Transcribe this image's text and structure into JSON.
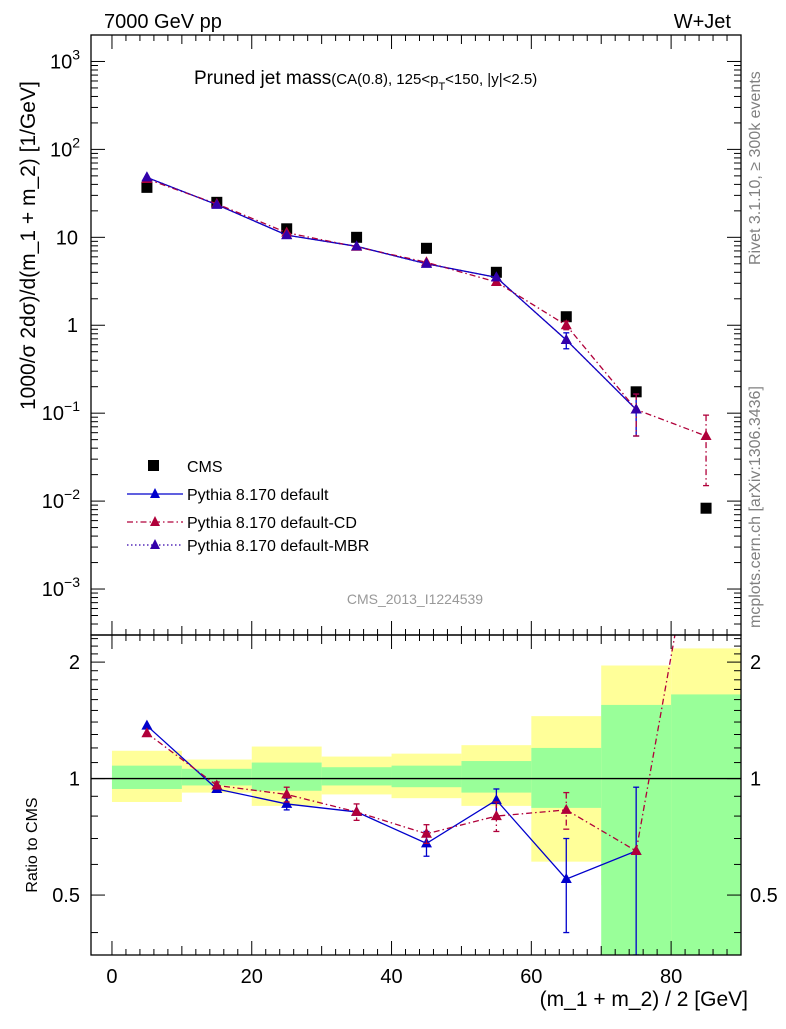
{
  "header": {
    "left": "7000 GeV pp",
    "right": "W+Jet"
  },
  "side_labels": {
    "rivet": "Rivet 3.1.10, ≥ 300k events",
    "mcplots": "mcplots.cern.ch [arXiv:1306.3436]"
  },
  "chart_data": {
    "type": "scatter",
    "title": "Pruned jet mass",
    "title_suffix": "(CA(0.8), 125<p",
    "title_sub": "T",
    "title_end": "<150, |y|<2.5)",
    "reference": "CMS_2013_I1224539",
    "xlabel": "(m_1 + m_2) / 2 [GeV]",
    "ylabel": "1000/σ 2dσ)/d(m_1 + m_2) [1/GeV]",
    "ratio_ylabel": "Ratio to CMS",
    "xlim": [
      -3,
      90
    ],
    "ylim": [
      0.0003,
      2000
    ],
    "yscale": "log",
    "ratio_ylim": [
      0.35,
      2.35
    ],
    "ratio_yscale": "log",
    "x_ticks": [
      "0",
      "20",
      "40",
      "60",
      "80"
    ],
    "main_y_ticks": [
      "10",
      "10",
      "10",
      "1",
      "10",
      "10",
      "10"
    ],
    "main_y_tick_exps": [
      "3",
      "2",
      "",
      "",
      "−1",
      "−2",
      "−3"
    ],
    "ratio_y_ticks": [
      "2",
      "1",
      "0.5"
    ],
    "legend": [
      "CMS",
      "Pythia 8.170 default",
      "Pythia 8.170 default-CD",
      "Pythia 8.170 default-MBR"
    ],
    "series": [
      {
        "name": "CMS",
        "color": "#000000",
        "marker": "square",
        "x": [
          5,
          15,
          25,
          35,
          45,
          55,
          65,
          75,
          85
        ],
        "y": [
          37,
          25,
          12.5,
          10,
          7.5,
          4.0,
          1.25,
          0.175,
          0.0083
        ]
      },
      {
        "name": "Pythia 8.170 default",
        "color": "#0000cc",
        "marker": "triangle",
        "style": "solid",
        "x": [
          5,
          15,
          25,
          35,
          45,
          55,
          65,
          75
        ],
        "y": [
          48,
          23.5,
          10.6,
          7.9,
          5.0,
          3.5,
          0.68,
          0.11
        ],
        "err_lo": [
          0,
          0,
          0,
          0,
          0,
          0,
          0.14,
          0.055
        ],
        "err_hi": [
          0,
          0,
          0,
          0,
          0,
          0,
          0.14,
          0.055
        ]
      },
      {
        "name": "Pythia 8.170 default-CD",
        "color": "#b0003a",
        "marker": "triangle",
        "style": "dashdot",
        "x": [
          5,
          15,
          25,
          35,
          45,
          55,
          65,
          75,
          85
        ],
        "y": [
          46,
          24,
          11.3,
          7.8,
          5.2,
          3.1,
          1.0,
          0.11,
          0.055
        ],
        "err_lo": [
          0,
          0,
          0,
          0,
          0,
          0,
          0.11,
          0.055,
          0.04
        ],
        "err_hi": [
          0,
          0,
          0,
          0,
          0,
          0,
          0.11,
          0.055,
          0.04
        ]
      },
      {
        "name": "Pythia 8.170 default-MBR",
        "color": "#3300aa",
        "marker": "triangle",
        "style": "dotted",
        "x": [
          5,
          15,
          25,
          35,
          45,
          55,
          65,
          75
        ],
        "y": [
          48,
          23.5,
          10.6,
          7.9,
          5.0,
          3.5,
          0.68,
          0.11
        ]
      }
    ],
    "ratio": {
      "bins": [
        [
          0,
          10
        ],
        [
          10,
          20
        ],
        [
          20,
          30
        ],
        [
          30,
          40
        ],
        [
          40,
          50
        ],
        [
          50,
          60
        ],
        [
          60,
          70
        ],
        [
          70,
          80
        ],
        [
          80,
          90
        ]
      ],
      "green_band": [
        [
          0.94,
          1.08
        ],
        [
          0.96,
          1.06
        ],
        [
          0.93,
          1.1
        ],
        [
          0.96,
          1.07
        ],
        [
          0.95,
          1.08
        ],
        [
          0.92,
          1.11
        ],
        [
          0.84,
          1.2
        ],
        [
          0.35,
          1.55
        ],
        [
          0.35,
          1.65
        ]
      ],
      "yellow_band": [
        [
          0.87,
          1.18
        ],
        [
          0.92,
          1.12
        ],
        [
          0.85,
          1.21
        ],
        [
          0.91,
          1.14
        ],
        [
          0.89,
          1.16
        ],
        [
          0.85,
          1.22
        ],
        [
          0.61,
          1.45
        ],
        [
          0.53,
          1.96
        ],
        [
          0.35,
          2.17
        ]
      ],
      "series": [
        {
          "name": "Pythia 8.170 default",
          "x": [
            5,
            15,
            25,
            35,
            45,
            55,
            65,
            75
          ],
          "y": [
            1.37,
            0.94,
            0.86,
            0.82,
            0.68,
            0.88,
            0.55,
            0.65
          ],
          "err_lo": [
            0,
            0,
            0.03,
            0,
            0.05,
            0.08,
            0.15,
            0.3
          ],
          "err_hi": [
            0,
            0,
            0.03,
            0,
            0.05,
            0.06,
            0.15,
            0.3
          ]
        },
        {
          "name": "Pythia 8.170 default-CD",
          "x": [
            5,
            15,
            25,
            35,
            45,
            55,
            65,
            75,
            85
          ],
          "y": [
            1.31,
            0.96,
            0.91,
            0.82,
            0.72,
            0.8,
            0.83,
            0.65,
            6.6
          ],
          "err_lo": [
            0,
            0.02,
            0.04,
            0.04,
            0.04,
            0.07,
            0.09,
            0,
            0
          ],
          "err_hi": [
            0,
            0.02,
            0.04,
            0.04,
            0.04,
            0.07,
            0.09,
            0,
            0
          ]
        }
      ]
    }
  }
}
